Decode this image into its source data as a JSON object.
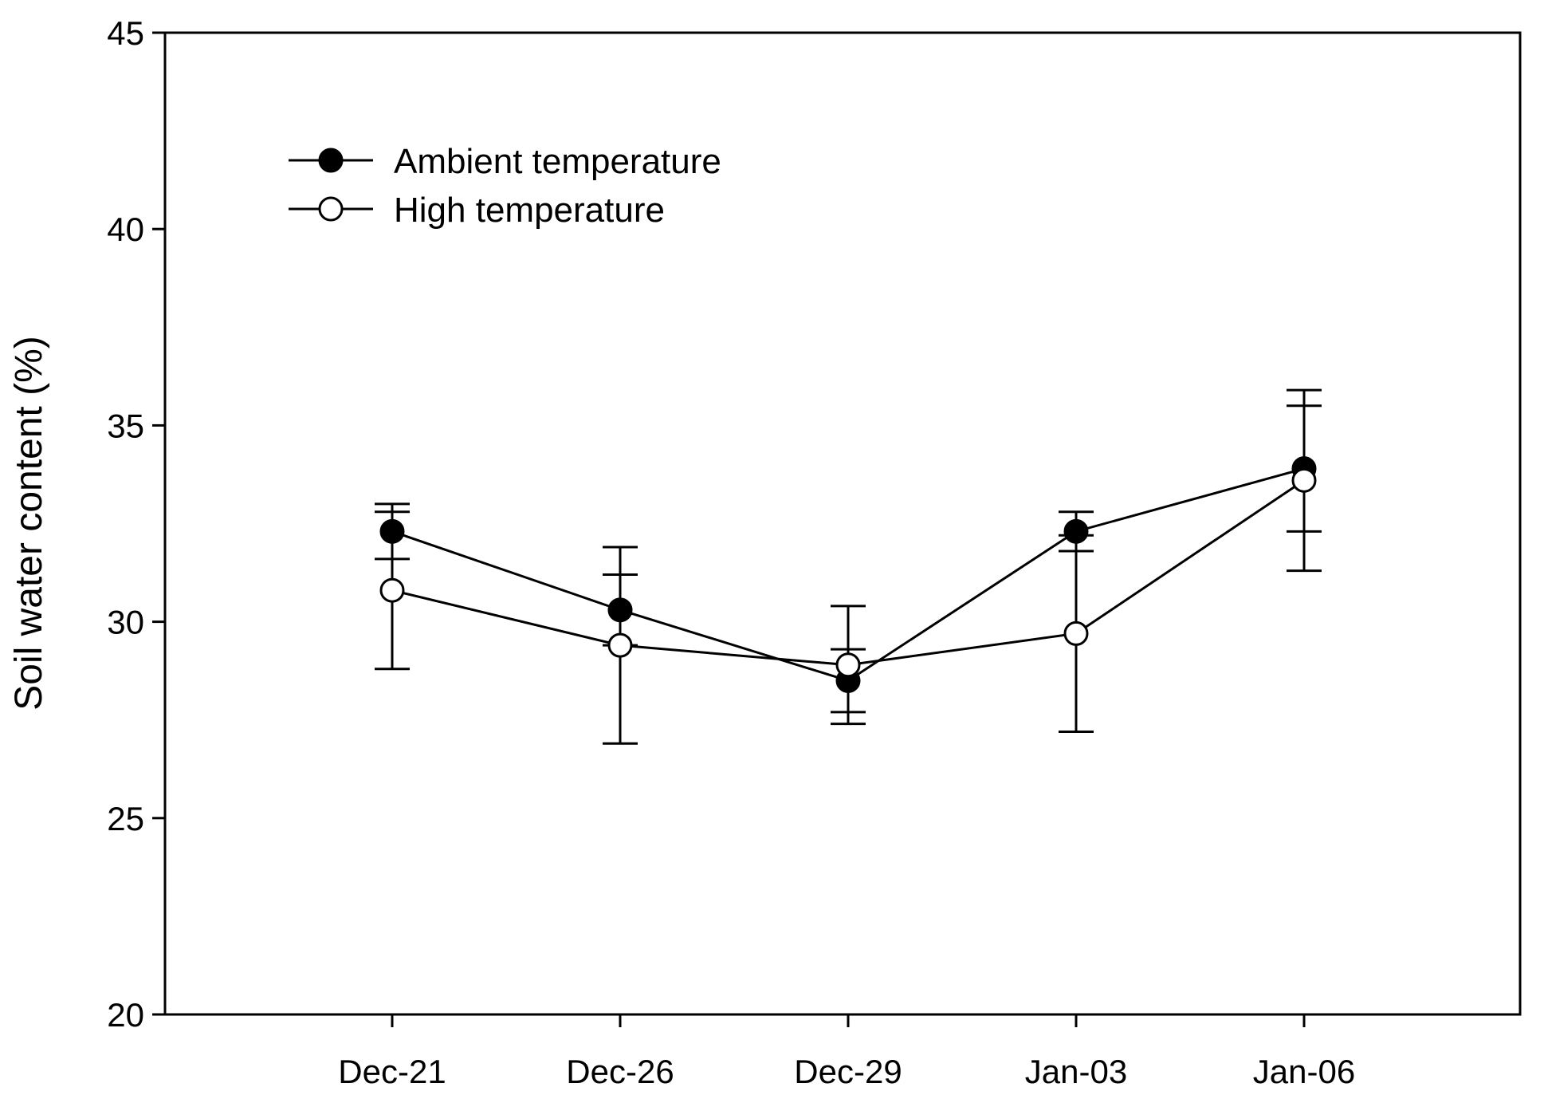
{
  "chart_data": {
    "type": "line",
    "title": "",
    "xlabel": "",
    "ylabel": "Soil water content (%)",
    "ylim": [
      20,
      45
    ],
    "yticks": [
      20,
      25,
      30,
      35,
      40,
      45
    ],
    "categories": [
      "Dec-21",
      "Dec-26",
      "Dec-29",
      "Jan-03",
      "Jan-06"
    ],
    "legend_position": "top-left",
    "series": [
      {
        "name": "Ambient temperature",
        "marker": "filled-circle",
        "values": [
          32.3,
          30.3,
          28.5,
          32.3,
          33.9
        ],
        "error": [
          0.7,
          0.9,
          0.8,
          0.5,
          1.6
        ]
      },
      {
        "name": "High temperature",
        "marker": "open-circle",
        "values": [
          30.8,
          29.4,
          28.9,
          29.7,
          33.6
        ],
        "error": [
          2.0,
          2.5,
          1.5,
          2.5,
          2.3
        ]
      }
    ]
  },
  "colors": {
    "line": "#000000",
    "background": "#ffffff"
  }
}
